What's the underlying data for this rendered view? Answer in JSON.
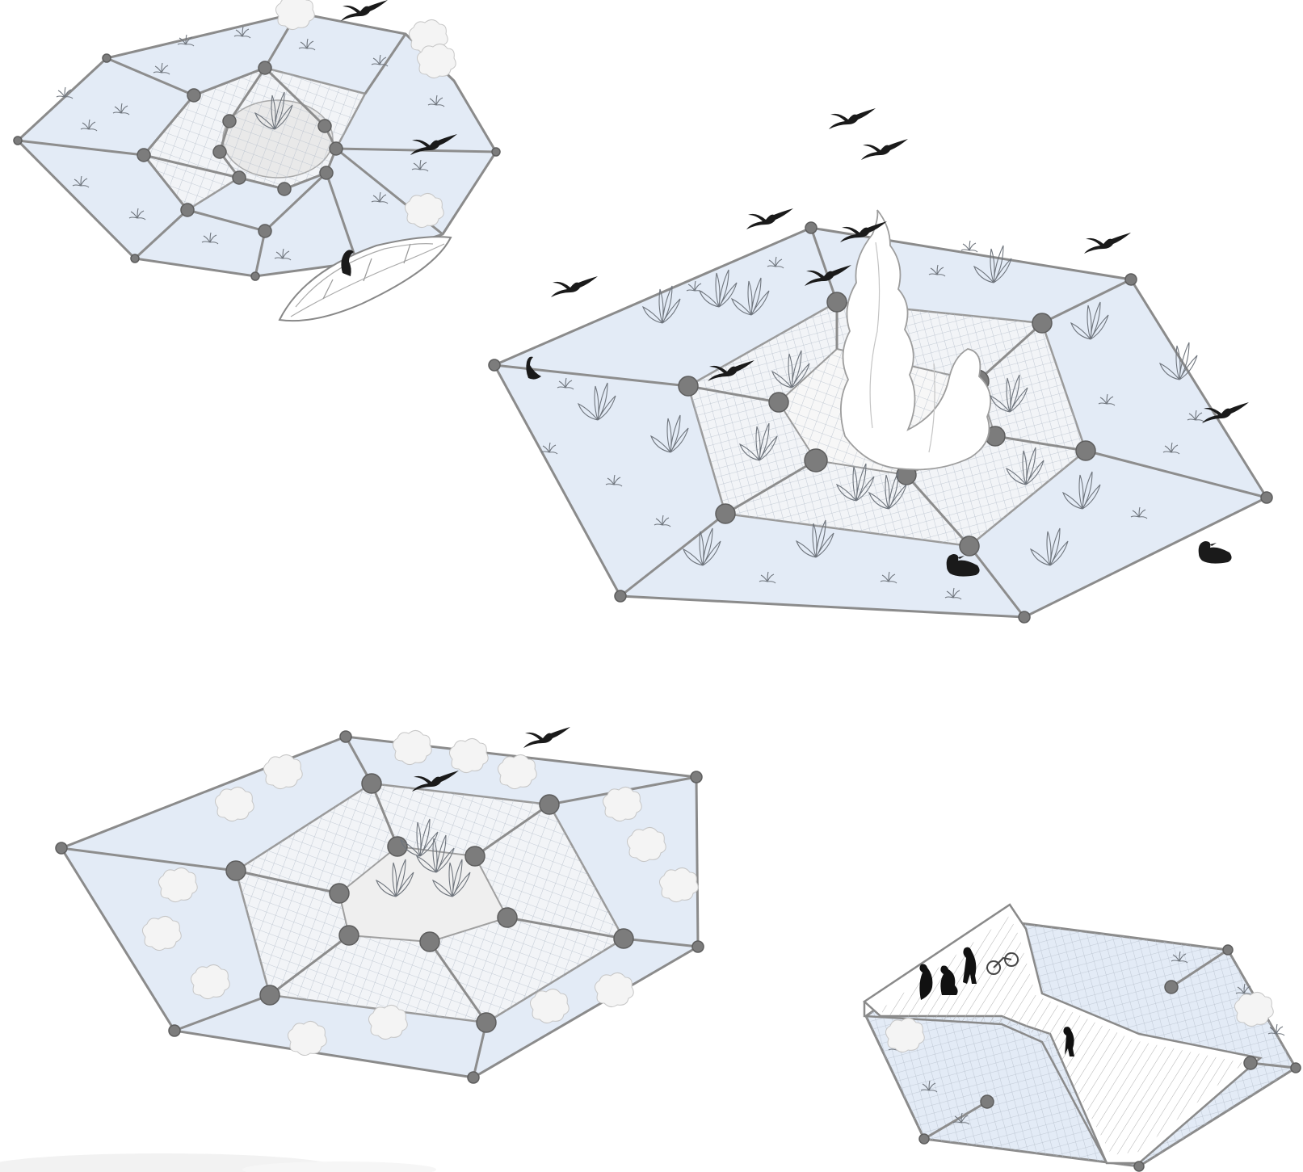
{
  "diagram": {
    "modules": [
      {
        "id": "module-1",
        "content": "boat"
      },
      {
        "id": "module-2",
        "content": "habitat-tower"
      },
      {
        "id": "module-3",
        "content": "tropical-island"
      },
      {
        "id": "module-4",
        "content": "public-deck"
      }
    ],
    "palette": {
      "raft_fill": "#e3ebf6",
      "frame": "#8d8d8d",
      "node": "#7c7c7c",
      "silhouette": "#1a1a1a"
    }
  }
}
